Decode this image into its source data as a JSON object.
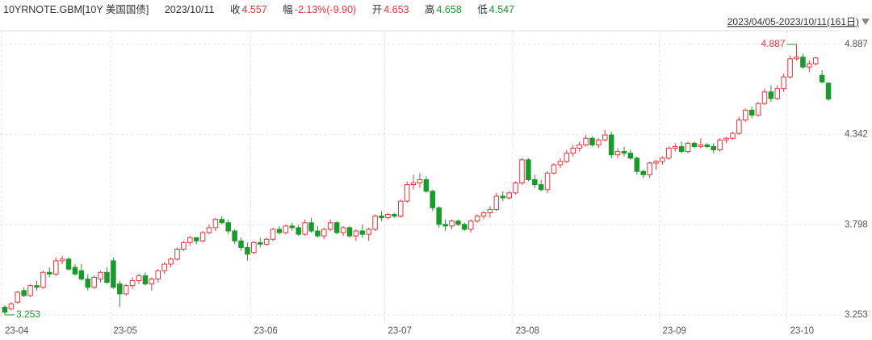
{
  "header": {
    "symbol": "10YRNOTE.GBM[10Y 美国国债]",
    "date": "2023/10/11",
    "close_label": "收",
    "change_label": "幅",
    "change": "-2.13%(-9.90)",
    "open_label": "开",
    "high_label": "高",
    "low_label": "低"
  },
  "range_label": "2023/04/05-2023/10/11(161日)",
  "chart_data": {
    "type": "candlestick",
    "up_color": "#e8343a",
    "down_color": "#1b9a2c",
    "up_hollow": true,
    "grid": true,
    "ylim": [
      3.204,
      4.96
    ],
    "yticks": [
      3.253,
      3.798,
      4.342,
      4.887
    ],
    "categories": [
      "23-04",
      null,
      null,
      null,
      null,
      null,
      null,
      null,
      null,
      null,
      null,
      null,
      null,
      null,
      null,
      null,
      null,
      "23-05",
      null,
      null,
      null,
      null,
      null,
      null,
      null,
      null,
      null,
      null,
      null,
      null,
      null,
      null,
      null,
      null,
      null,
      null,
      null,
      null,
      null,
      "23-06",
      null,
      null,
      null,
      null,
      null,
      null,
      null,
      null,
      null,
      null,
      null,
      null,
      null,
      null,
      null,
      null,
      null,
      null,
      null,
      null,
      "23-07",
      null,
      null,
      null,
      null,
      null,
      null,
      null,
      null,
      null,
      null,
      null,
      null,
      null,
      null,
      null,
      null,
      null,
      null,
      null,
      "23-08",
      null,
      null,
      null,
      null,
      null,
      null,
      null,
      null,
      null,
      null,
      null,
      null,
      null,
      null,
      null,
      null,
      null,
      null,
      null,
      null,
      null,
      null,
      "23-09",
      null,
      null,
      null,
      null,
      null,
      null,
      null,
      null,
      null,
      null,
      null,
      null,
      null,
      null,
      null,
      null,
      null,
      null,
      null,
      "23-10",
      null,
      null,
      null,
      null,
      null,
      null
    ],
    "open": [
      3.3,
      3.29,
      3.33,
      3.4,
      3.37,
      3.43,
      3.42,
      3.51,
      3.5,
      3.58,
      3.59,
      3.54,
      3.52,
      3.47,
      3.42,
      3.47,
      3.51,
      3.58,
      3.44,
      3.38,
      3.43,
      3.46,
      3.49,
      3.44,
      3.47,
      3.52,
      3.56,
      3.59,
      3.65,
      3.69,
      3.72,
      3.7,
      3.75,
      3.78,
      3.83,
      3.81,
      3.76,
      3.7,
      3.66,
      3.63,
      3.69,
      3.68,
      3.71,
      3.77,
      3.75,
      3.79,
      3.78,
      3.74,
      3.81,
      3.76,
      3.73,
      3.77,
      3.81,
      3.75,
      3.78,
      3.73,
      3.76,
      3.74,
      3.77,
      3.85,
      3.84,
      3.86,
      3.85,
      3.94,
      4.04,
      4.05,
      4.07,
      4.0,
      3.9,
      3.8,
      3.79,
      3.82,
      3.8,
      3.77,
      3.82,
      3.85,
      3.87,
      3.89,
      3.97,
      3.96,
      3.99,
      4.05,
      4.19,
      4.07,
      4.04,
      4.01,
      4.11,
      4.16,
      4.18,
      4.23,
      4.26,
      4.28,
      4.32,
      4.28,
      4.31,
      4.34,
      4.22,
      4.24,
      4.23,
      4.2,
      4.12,
      4.1,
      4.17,
      4.18,
      4.2,
      4.26,
      4.27,
      4.24,
      4.29,
      4.27,
      4.28,
      4.27,
      4.25,
      4.31,
      4.32,
      4.35,
      4.43,
      4.49,
      4.46,
      4.53,
      4.6,
      4.56,
      4.62,
      4.69,
      4.8,
      4.81,
      4.75,
      4.77,
      4.7,
      4.653
    ],
    "high": [
      3.31,
      3.33,
      3.4,
      3.42,
      3.44,
      3.46,
      3.52,
      3.54,
      3.6,
      3.61,
      3.6,
      3.56,
      3.56,
      3.5,
      3.49,
      3.52,
      3.54,
      3.6,
      3.46,
      3.44,
      3.48,
      3.5,
      3.51,
      3.48,
      3.53,
      3.57,
      3.6,
      3.66,
      3.7,
      3.73,
      3.72,
      3.76,
      3.8,
      3.84,
      3.85,
      3.83,
      3.77,
      3.72,
      3.69,
      3.7,
      3.72,
      3.72,
      3.78,
      3.79,
      3.8,
      3.81,
      3.8,
      3.83,
      3.84,
      3.79,
      3.78,
      3.83,
      3.82,
      3.79,
      3.79,
      3.77,
      3.8,
      3.78,
      3.86,
      3.88,
      3.87,
      3.87,
      3.95,
      4.06,
      4.1,
      4.11,
      4.09,
      4.01,
      3.91,
      3.83,
      3.83,
      3.83,
      3.81,
      3.83,
      3.86,
      3.88,
      3.91,
      3.99,
      4.0,
      4.0,
      4.06,
      4.2,
      4.2,
      4.1,
      4.07,
      4.12,
      4.17,
      4.2,
      4.25,
      4.28,
      4.3,
      4.34,
      4.33,
      4.32,
      4.37,
      4.36,
      4.26,
      4.27,
      4.25,
      4.21,
      4.13,
      4.18,
      4.19,
      4.21,
      4.27,
      4.29,
      4.3,
      4.3,
      4.3,
      4.32,
      4.29,
      4.29,
      4.32,
      4.33,
      4.36,
      4.45,
      4.5,
      4.51,
      4.54,
      4.62,
      4.64,
      4.64,
      4.71,
      4.82,
      4.887,
      4.83,
      4.79,
      4.81,
      4.73,
      4.658
    ],
    "low": [
      3.253,
      3.28,
      3.32,
      3.36,
      3.36,
      3.4,
      3.41,
      3.48,
      3.49,
      3.56,
      3.52,
      3.49,
      3.46,
      3.4,
      3.41,
      3.45,
      3.44,
      3.41,
      3.3,
      3.37,
      3.41,
      3.44,
      3.43,
      3.4,
      3.45,
      3.5,
      3.54,
      3.58,
      3.64,
      3.67,
      3.68,
      3.69,
      3.74,
      3.76,
      3.8,
      3.74,
      3.68,
      3.64,
      3.58,
      3.62,
      3.66,
      3.67,
      3.7,
      3.74,
      3.74,
      3.76,
      3.73,
      3.73,
      3.75,
      3.72,
      3.71,
      3.76,
      3.74,
      3.73,
      3.72,
      3.7,
      3.72,
      3.7,
      3.76,
      3.82,
      3.83,
      3.84,
      3.84,
      3.93,
      4.01,
      4.02,
      3.99,
      3.88,
      3.78,
      3.76,
      3.77,
      3.79,
      3.76,
      3.75,
      3.81,
      3.83,
      3.84,
      3.88,
      3.94,
      3.95,
      3.98,
      4.04,
      4.06,
      4.02,
      4.0,
      3.99,
      4.1,
      4.14,
      4.17,
      4.21,
      4.24,
      4.27,
      4.27,
      4.26,
      4.3,
      4.2,
      4.2,
      4.21,
      4.19,
      4.1,
      4.08,
      4.08,
      4.13,
      4.16,
      4.19,
      4.24,
      4.23,
      4.23,
      4.26,
      4.26,
      4.26,
      4.23,
      4.24,
      4.29,
      4.31,
      4.34,
      4.42,
      4.44,
      4.45,
      4.52,
      4.54,
      4.55,
      4.6,
      4.68,
      4.79,
      4.74,
      4.72,
      4.76,
      4.65,
      4.547
    ],
    "close": [
      3.27,
      3.32,
      3.39,
      3.37,
      3.43,
      3.42,
      3.51,
      3.5,
      3.58,
      3.59,
      3.53,
      3.5,
      3.47,
      3.42,
      3.48,
      3.51,
      3.45,
      3.42,
      3.38,
      3.43,
      3.46,
      3.49,
      3.44,
      3.47,
      3.52,
      3.56,
      3.59,
      3.65,
      3.69,
      3.72,
      3.7,
      3.75,
      3.78,
      3.83,
      3.81,
      3.76,
      3.7,
      3.66,
      3.62,
      3.69,
      3.68,
      3.71,
      3.77,
      3.75,
      3.79,
      3.78,
      3.74,
      3.81,
      3.76,
      3.73,
      3.77,
      3.81,
      3.75,
      3.78,
      3.73,
      3.76,
      3.74,
      3.77,
      3.85,
      3.84,
      3.86,
      3.85,
      3.94,
      4.04,
      4.05,
      4.07,
      4.0,
      3.9,
      3.8,
      3.79,
      3.82,
      3.8,
      3.77,
      3.82,
      3.85,
      3.87,
      3.89,
      3.97,
      3.96,
      3.99,
      4.05,
      4.19,
      4.07,
      4.04,
      4.01,
      4.11,
      4.16,
      4.18,
      4.23,
      4.26,
      4.28,
      4.32,
      4.28,
      4.31,
      4.34,
      4.22,
      4.24,
      4.23,
      4.2,
      4.12,
      4.1,
      4.17,
      4.18,
      4.2,
      4.26,
      4.27,
      4.24,
      4.29,
      4.27,
      4.28,
      4.27,
      4.25,
      4.31,
      4.32,
      4.35,
      4.43,
      4.49,
      4.46,
      4.53,
      4.6,
      4.56,
      4.62,
      4.69,
      4.8,
      4.81,
      4.75,
      4.77,
      4.805,
      4.66,
      4.557
    ]
  }
}
